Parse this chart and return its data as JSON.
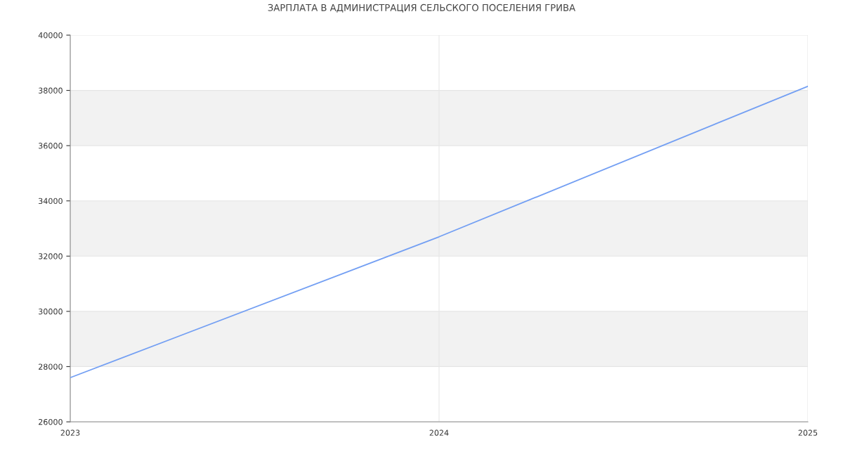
{
  "chart_data": {
    "type": "line",
    "title": "ЗАРПЛАТА В АДМИНИСТРАЦИЯ СЕЛЬСКОГО ПОСЕЛЕНИЯ ГРИВА",
    "x": [
      2023,
      2024,
      2025
    ],
    "series": [
      {
        "color": "#739ff3",
        "values": [
          27600,
          32700,
          38150
        ]
      }
    ],
    "xlim": [
      2023,
      2025
    ],
    "xticks": [
      2023,
      2024,
      2025
    ],
    "ylim": [
      26000,
      40000
    ],
    "yticks": [
      26000,
      28000,
      30000,
      32000,
      34000,
      36000,
      38000,
      40000
    ],
    "bands": [
      {
        "axis": "y",
        "from": 28000,
        "to": 30000,
        "color": "#f2f2f2"
      },
      {
        "axis": "y",
        "from": 32000,
        "to": 34000,
        "color": "#f2f2f2"
      },
      {
        "axis": "y",
        "from": 36000,
        "to": 38000,
        "color": "#f2f2f2"
      }
    ],
    "grid": true,
    "legend": false,
    "marker": "none",
    "line_style": "solid"
  }
}
